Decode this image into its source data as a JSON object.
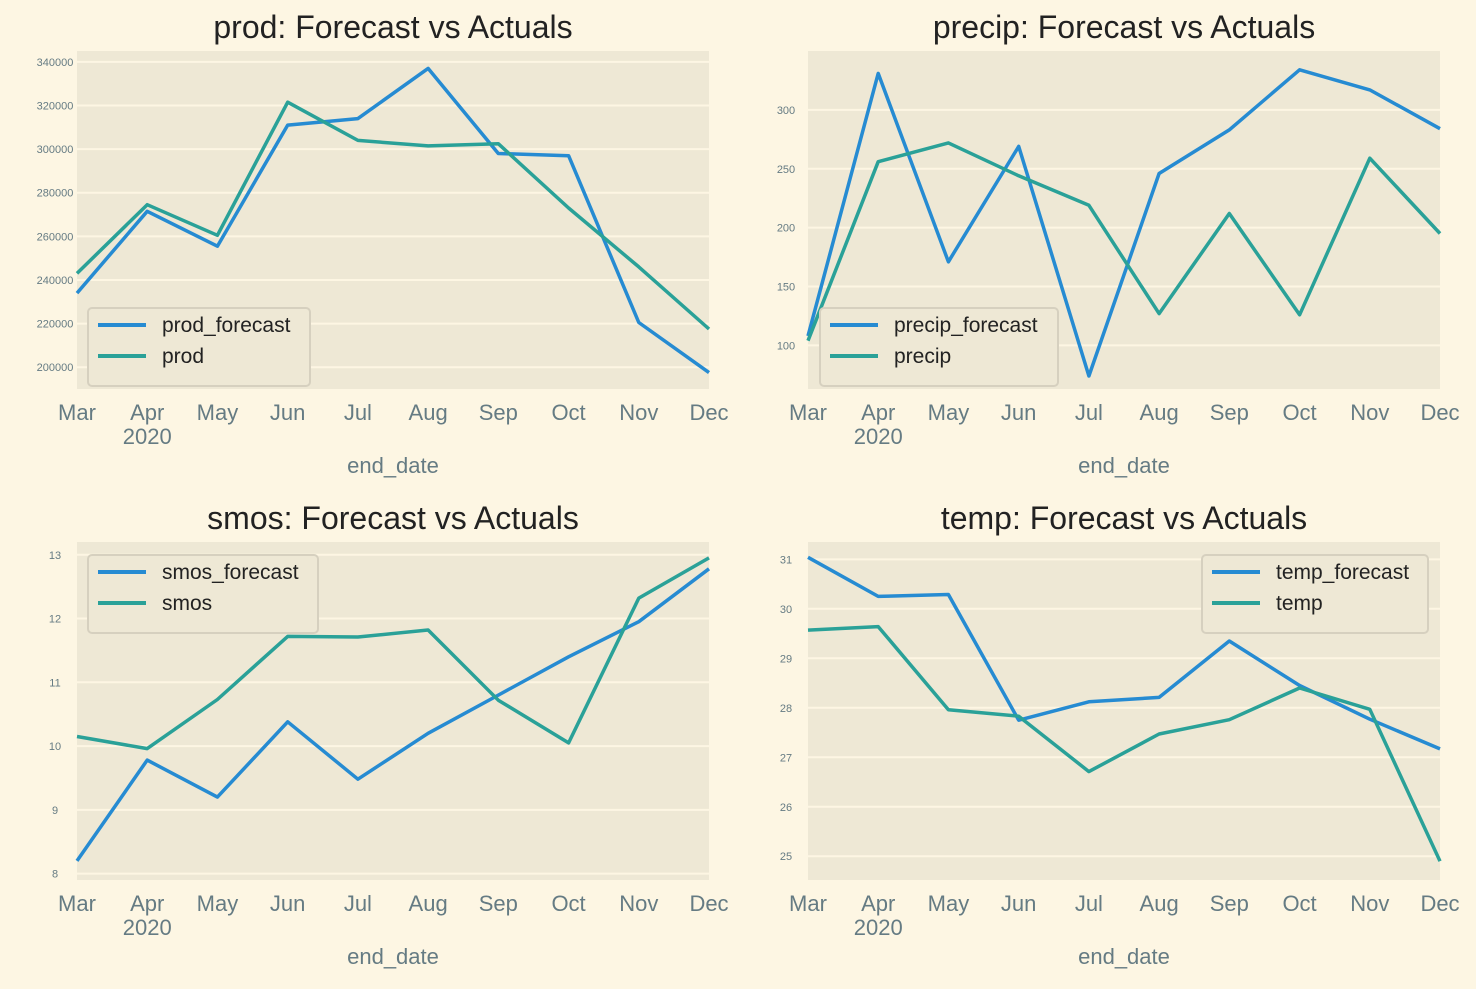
{
  "figure": {
    "background": "#fdf6e3",
    "plot_background": "#eee8d5"
  },
  "colors": {
    "forecast": "#268bd2",
    "actual": "#2aa198"
  },
  "chart_data": [
    {
      "type": "line",
      "title": "prod: Forecast vs Actuals",
      "xlabel": "end_date",
      "x": [
        "Mar",
        "Apr",
        "May",
        "Jun",
        "Jul",
        "Aug",
        "Sep",
        "Oct",
        "Nov",
        "Dec"
      ],
      "x_sublabel": {
        "index": 1,
        "text": "2020"
      },
      "ylim": [
        190000,
        345000
      ],
      "yticks": [
        200000,
        220000,
        240000,
        260000,
        280000,
        300000,
        320000,
        340000
      ],
      "grid": true,
      "legend": "lower-left",
      "series": [
        {
          "name": "prod_forecast",
          "color": "#268bd2",
          "values": [
            234000,
            271500,
            255500,
            311000,
            314000,
            337000,
            298000,
            297000,
            220500,
            197500
          ]
        },
        {
          "name": "prod",
          "color": "#2aa198",
          "values": [
            243000,
            274500,
            260500,
            321500,
            304000,
            301500,
            302500,
            273000,
            246000,
            217500
          ]
        }
      ]
    },
    {
      "type": "line",
      "title": "precip: Forecast vs Actuals",
      "xlabel": "end_date",
      "x": [
        "Mar",
        "Apr",
        "May",
        "Jun",
        "Jul",
        "Aug",
        "Sep",
        "Oct",
        "Nov",
        "Dec"
      ],
      "x_sublabel": {
        "index": 1,
        "text": "2020"
      },
      "ylim": [
        63,
        350
      ],
      "yticks": [
        100,
        150,
        200,
        250,
        300
      ],
      "grid": true,
      "legend": "lower-left",
      "series": [
        {
          "name": "precip_forecast",
          "color": "#268bd2",
          "values": [
            108,
            331,
            171,
            269,
            74,
            246,
            283,
            334,
            317,
            284
          ]
        },
        {
          "name": "precip",
          "color": "#2aa198",
          "values": [
            104,
            256,
            272,
            244,
            219,
            127,
            212,
            126,
            259,
            195
          ]
        }
      ]
    },
    {
      "type": "line",
      "title": "smos: Forecast vs Actuals",
      "xlabel": "end_date",
      "x": [
        "Mar",
        "Apr",
        "May",
        "Jun",
        "Jul",
        "Aug",
        "Sep",
        "Oct",
        "Nov",
        "Dec"
      ],
      "x_sublabel": {
        "index": 1,
        "text": "2020"
      },
      "ylim": [
        7.9,
        13.2
      ],
      "yticks": [
        8,
        9,
        10,
        11,
        12,
        13
      ],
      "grid": true,
      "legend": "upper-left",
      "series": [
        {
          "name": "smos_forecast",
          "color": "#268bd2",
          "values": [
            8.2,
            9.78,
            9.2,
            10.38,
            9.48,
            10.2,
            10.8,
            11.4,
            11.95,
            12.78
          ]
        },
        {
          "name": "smos",
          "color": "#2aa198",
          "values": [
            10.15,
            9.96,
            10.73,
            11.72,
            11.71,
            11.82,
            10.72,
            10.05,
            12.32,
            12.95
          ]
        }
      ]
    },
    {
      "type": "line",
      "title": "temp: Forecast vs Actuals",
      "xlabel": "end_date",
      "x": [
        "Mar",
        "Apr",
        "May",
        "Jun",
        "Jul",
        "Aug",
        "Sep",
        "Oct",
        "Nov",
        "Dec"
      ],
      "x_sublabel": {
        "index": 1,
        "text": "2020"
      },
      "ylim": [
        24.52,
        31.35
      ],
      "yticks": [
        25,
        26,
        27,
        28,
        29,
        30,
        31
      ],
      "grid": true,
      "legend": "upper-right",
      "series": [
        {
          "name": "temp_forecast",
          "color": "#268bd2",
          "values": [
            31.04,
            30.25,
            30.29,
            27.75,
            28.12,
            28.21,
            29.35,
            28.45,
            27.77,
            27.17
          ]
        },
        {
          "name": "temp",
          "color": "#2aa198",
          "values": [
            29.57,
            29.64,
            27.96,
            27.83,
            26.71,
            27.47,
            27.76,
            28.4,
            27.97,
            24.9
          ]
        }
      ]
    }
  ]
}
